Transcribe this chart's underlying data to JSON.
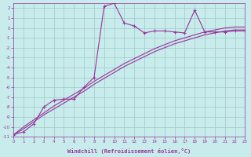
{
  "xlabel": "Windchill (Refroidissement éolien,°C)",
  "background_color": "#c8ecec",
  "grid_color": "#a0c8c8",
  "line_color": "#993399",
  "xlim": [
    0,
    23
  ],
  "ylim": [
    -11,
    2.5
  ],
  "x": [
    0,
    1,
    2,
    3,
    4,
    5,
    6,
    7,
    8,
    9,
    10,
    11,
    12,
    13,
    14,
    15,
    16,
    17,
    18,
    19,
    20,
    21,
    22,
    23
  ],
  "line1_y": [
    -10.8,
    -10.5,
    -9.7,
    -8.0,
    -7.3,
    -7.2,
    -7.2,
    -6.0,
    -5.0,
    2.2,
    2.5,
    0.5,
    0.2,
    -0.5,
    -0.3,
    -0.3,
    -0.4,
    -0.5,
    1.8,
    -0.4,
    -0.4,
    -0.4,
    -0.3,
    -0.3
  ],
  "line2_y": [
    -10.8,
    -10.2,
    -9.5,
    -8.8,
    -8.2,
    -7.6,
    -7.0,
    -6.4,
    -5.7,
    -5.1,
    -4.5,
    -3.9,
    -3.4,
    -2.9,
    -2.4,
    -2.0,
    -1.6,
    -1.3,
    -1.0,
    -0.7,
    -0.5,
    -0.3,
    -0.2,
    -0.2
  ],
  "line3_y": [
    -10.8,
    -10.0,
    -9.3,
    -8.6,
    -7.9,
    -7.3,
    -6.7,
    -6.1,
    -5.4,
    -4.8,
    -4.2,
    -3.6,
    -3.1,
    -2.6,
    -2.1,
    -1.7,
    -1.3,
    -1.0,
    -0.7,
    -0.4,
    -0.2,
    0.0,
    0.1,
    0.1
  ]
}
